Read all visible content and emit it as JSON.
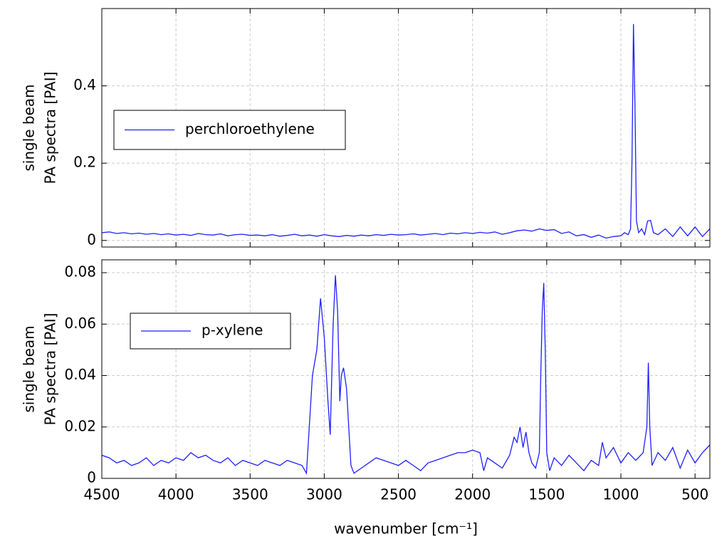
{
  "chart_data": [
    {
      "type": "line",
      "ylabel": [
        "single beam",
        "PA spectra [PAI]"
      ],
      "x": [
        4500,
        4450,
        4400,
        4350,
        4300,
        4250,
        4200,
        4150,
        4100,
        4050,
        4000,
        3950,
        3900,
        3850,
        3800,
        3750,
        3700,
        3650,
        3600,
        3550,
        3500,
        3450,
        3400,
        3350,
        3300,
        3250,
        3200,
        3150,
        3100,
        3050,
        3000,
        2950,
        2900,
        2850,
        2800,
        2750,
        2700,
        2650,
        2600,
        2550,
        2500,
        2450,
        2400,
        2350,
        2300,
        2250,
        2200,
        2150,
        2100,
        2050,
        2000,
        1950,
        1900,
        1850,
        1800,
        1750,
        1700,
        1650,
        1600,
        1550,
        1500,
        1450,
        1400,
        1350,
        1300,
        1250,
        1200,
        1150,
        1100,
        1050,
        1000,
        975,
        950,
        935,
        925,
        915,
        905,
        895,
        880,
        860,
        840,
        820,
        800,
        780,
        750,
        700,
        650,
        600,
        550,
        500,
        450,
        400
      ],
      "series": [
        {
          "name": "perchloroethylene",
          "color": "#1f1fff",
          "values": [
            0.02,
            0.022,
            0.018,
            0.02,
            0.017,
            0.019,
            0.016,
            0.018,
            0.015,
            0.017,
            0.014,
            0.016,
            0.013,
            0.018,
            0.015,
            0.014,
            0.017,
            0.012,
            0.015,
            0.016,
            0.013,
            0.014,
            0.012,
            0.015,
            0.011,
            0.013,
            0.016,
            0.012,
            0.014,
            0.011,
            0.015,
            0.012,
            0.01,
            0.013,
            0.011,
            0.014,
            0.012,
            0.015,
            0.013,
            0.016,
            0.014,
            0.015,
            0.017,
            0.014,
            0.016,
            0.018,
            0.015,
            0.019,
            0.017,
            0.02,
            0.018,
            0.021,
            0.019,
            0.022,
            0.016,
            0.02,
            0.025,
            0.027,
            0.024,
            0.03,
            0.026,
            0.028,
            0.018,
            0.022,
            0.012,
            0.015,
            0.008,
            0.014,
            0.006,
            0.01,
            0.012,
            0.02,
            0.015,
            0.03,
            0.2,
            0.56,
            0.35,
            0.05,
            0.02,
            0.03,
            0.015,
            0.05,
            0.052,
            0.02,
            0.015,
            0.03,
            0.01,
            0.035,
            0.012,
            0.035,
            0.01,
            0.03
          ]
        }
      ],
      "xlim": [
        4500,
        400
      ],
      "xticks": [
        4500,
        4000,
        3500,
        3000,
        2500,
        2000,
        1500,
        1000,
        500
      ],
      "ylim": [
        -0.017,
        0.6
      ],
      "yticks": [
        0,
        0.2,
        0.4
      ],
      "grid": true,
      "legend": "left"
    },
    {
      "type": "line",
      "xlabel": "wavenumber [cm⁻¹]",
      "ylabel": [
        "single beam",
        "PA spectra [PAI]"
      ],
      "x": [
        4500,
        4450,
        4400,
        4350,
        4300,
        4250,
        4200,
        4150,
        4100,
        4050,
        4000,
        3950,
        3900,
        3850,
        3800,
        3750,
        3700,
        3650,
        3600,
        3550,
        3500,
        3450,
        3400,
        3350,
        3300,
        3250,
        3200,
        3150,
        3120,
        3080,
        3050,
        3025,
        3000,
        2975,
        2960,
        2940,
        2925,
        2910,
        2895,
        2885,
        2870,
        2850,
        2820,
        2800,
        2750,
        2700,
        2650,
        2600,
        2550,
        2500,
        2450,
        2400,
        2350,
        2300,
        2250,
        2200,
        2150,
        2100,
        2050,
        2000,
        1950,
        1925,
        1900,
        1850,
        1800,
        1750,
        1720,
        1700,
        1680,
        1660,
        1640,
        1620,
        1600,
        1575,
        1550,
        1540,
        1530,
        1520,
        1510,
        1500,
        1480,
        1450,
        1400,
        1350,
        1300,
        1250,
        1200,
        1150,
        1125,
        1100,
        1050,
        1000,
        950,
        900,
        850,
        825,
        815,
        805,
        790,
        750,
        700,
        650,
        600,
        550,
        500,
        450,
        400
      ],
      "series": [
        {
          "name": "p-xylene",
          "color": "#1f1fff",
          "values": [
            0.009,
            0.008,
            0.006,
            0.007,
            0.005,
            0.006,
            0.008,
            0.005,
            0.007,
            0.006,
            0.008,
            0.007,
            0.01,
            0.008,
            0.009,
            0.007,
            0.006,
            0.008,
            0.005,
            0.007,
            0.006,
            0.005,
            0.007,
            0.006,
            0.005,
            0.007,
            0.006,
            0.005,
            0.002,
            0.04,
            0.05,
            0.07,
            0.055,
            0.03,
            0.017,
            0.06,
            0.079,
            0.065,
            0.03,
            0.04,
            0.043,
            0.035,
            0.005,
            0.002,
            0.004,
            0.006,
            0.008,
            0.007,
            0.006,
            0.005,
            0.007,
            0.005,
            0.003,
            0.006,
            0.007,
            0.008,
            0.009,
            0.01,
            0.01,
            0.011,
            0.01,
            0.003,
            0.008,
            0.006,
            0.004,
            0.009,
            0.016,
            0.014,
            0.02,
            0.012,
            0.018,
            0.01,
            0.006,
            0.004,
            0.01,
            0.04,
            0.065,
            0.076,
            0.05,
            0.01,
            0.003,
            0.008,
            0.005,
            0.009,
            0.006,
            0.003,
            0.007,
            0.005,
            0.014,
            0.008,
            0.012,
            0.006,
            0.01,
            0.007,
            0.01,
            0.02,
            0.045,
            0.02,
            0.005,
            0.01,
            0.007,
            0.012,
            0.004,
            0.011,
            0.006,
            0.01,
            0.013
          ]
        }
      ],
      "xlim": [
        4500,
        400
      ],
      "xticks": [
        4500,
        4000,
        3500,
        3000,
        2500,
        2000,
        1500,
        1000,
        500
      ],
      "ylim": [
        0,
        0.085
      ],
      "yticks": [
        0,
        0.02,
        0.04,
        0.06,
        0.08
      ],
      "grid": true,
      "legend": "left"
    }
  ]
}
